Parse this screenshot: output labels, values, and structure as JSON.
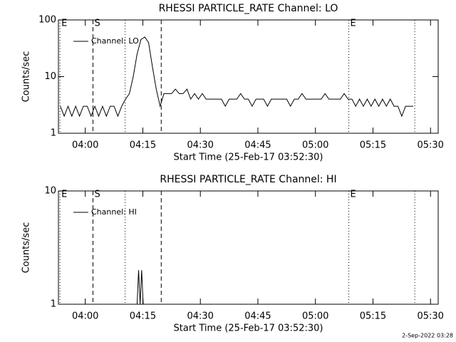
{
  "chart_data": [
    {
      "type": "line",
      "title": "RHESSI PARTICLE_RATE Channel: LO",
      "xlabel": "Start Time (25-Feb-17 03:52:30)",
      "ylabel": "Counts/sec",
      "log_y": true,
      "ylim": [
        1,
        100
      ],
      "yticks": [
        1,
        10,
        100
      ],
      "xlim": [
        0.5,
        99.5
      ],
      "xticks": [
        {
          "value": 7.5,
          "label": "04:00"
        },
        {
          "value": 22.5,
          "label": "04:15"
        },
        {
          "value": 37.5,
          "label": "04:30"
        },
        {
          "value": 52.5,
          "label": "04:45"
        },
        {
          "value": 67.5,
          "label": "05:00"
        },
        {
          "value": 82.5,
          "label": "05:15"
        },
        {
          "value": 97.5,
          "label": "05:30"
        }
      ],
      "vlines": [
        {
          "x": 0.9,
          "style": "dotted"
        },
        {
          "x": 9.5,
          "style": "dashed"
        },
        {
          "x": 17.9,
          "style": "dotted"
        },
        {
          "x": 27.3,
          "style": "dashed"
        },
        {
          "x": 76.2,
          "style": "dotted"
        },
        {
          "x": 93.4,
          "style": "dotted"
        }
      ],
      "markers": [
        {
          "x": 0.9,
          "label": "E"
        },
        {
          "x": 9.5,
          "label": "S"
        },
        {
          "x": 76.2,
          "label": "E"
        }
      ],
      "series": [
        {
          "name": "Channel: LO",
          "color": "#000000",
          "x": [
            1,
            2,
            3,
            4,
            5,
            6,
            7,
            8,
            9,
            10,
            11,
            12,
            13,
            14,
            15,
            16,
            17,
            18,
            19,
            20,
            21,
            22,
            23,
            24,
            25,
            26,
            27,
            28,
            29,
            30,
            31,
            32,
            33,
            34,
            35,
            36,
            37,
            38,
            39,
            40,
            41,
            42,
            43,
            44,
            45,
            46,
            47,
            48,
            49,
            50,
            51,
            52,
            53,
            54,
            55,
            56,
            57,
            58,
            59,
            60,
            61,
            62,
            63,
            64,
            65,
            66,
            67,
            68,
            69,
            70,
            71,
            72,
            73,
            74,
            75,
            76,
            77,
            78,
            79,
            80,
            81,
            82,
            83,
            84,
            85,
            86,
            87,
            88,
            89,
            90,
            91,
            92,
            93
          ],
          "values": [
            3,
            2,
            3,
            2,
            3,
            2,
            3,
            3,
            2,
            3,
            2,
            3,
            2,
            3,
            3,
            2,
            3,
            4,
            5,
            10,
            25,
            45,
            50,
            40,
            15,
            6,
            3,
            5,
            5,
            5,
            6,
            5,
            5,
            6,
            4,
            5,
            4,
            5,
            4,
            4,
            4,
            4,
            4,
            3,
            4,
            4,
            4,
            5,
            4,
            4,
            3,
            4,
            4,
            4,
            3,
            4,
            4,
            4,
            4,
            4,
            3,
            4,
            4,
            5,
            4,
            4,
            4,
            4,
            4,
            5,
            4,
            4,
            4,
            4,
            5,
            4,
            4,
            3,
            4,
            3,
            4,
            3,
            4,
            3,
            4,
            3,
            4,
            3,
            3,
            2,
            3,
            3,
            3
          ]
        }
      ]
    },
    {
      "type": "line",
      "title": "RHESSI PARTICLE_RATE Channel: HI",
      "xlabel": "Start Time (25-Feb-17 03:52:30)",
      "ylabel": "Counts/sec",
      "log_y": true,
      "ylim": [
        1,
        10
      ],
      "yticks": [
        1,
        10
      ],
      "xlim": [
        0.5,
        99.5
      ],
      "xticks": [
        {
          "value": 7.5,
          "label": "04:00"
        },
        {
          "value": 22.5,
          "label": "04:15"
        },
        {
          "value": 37.5,
          "label": "04:30"
        },
        {
          "value": 52.5,
          "label": "04:45"
        },
        {
          "value": 67.5,
          "label": "05:00"
        },
        {
          "value": 82.5,
          "label": "05:15"
        },
        {
          "value": 97.5,
          "label": "05:30"
        }
      ],
      "vlines": [
        {
          "x": 0.9,
          "style": "dotted"
        },
        {
          "x": 9.5,
          "style": "dashed"
        },
        {
          "x": 17.9,
          "style": "dotted"
        },
        {
          "x": 27.3,
          "style": "dashed"
        },
        {
          "x": 76.2,
          "style": "dotted"
        },
        {
          "x": 93.4,
          "style": "dotted"
        }
      ],
      "markers": [
        {
          "x": 0.9,
          "label": "E"
        },
        {
          "x": 9.5,
          "label": "S"
        },
        {
          "x": 76.2,
          "label": "E"
        }
      ],
      "series": [
        {
          "name": "Channel: HI",
          "color": "#000000",
          "x": [
            21,
            21.4,
            21.8,
            22.2,
            22.6
          ],
          "values": [
            1,
            2,
            1,
            2,
            1
          ]
        }
      ]
    }
  ],
  "footer": "2-Sep-2022 03:28"
}
